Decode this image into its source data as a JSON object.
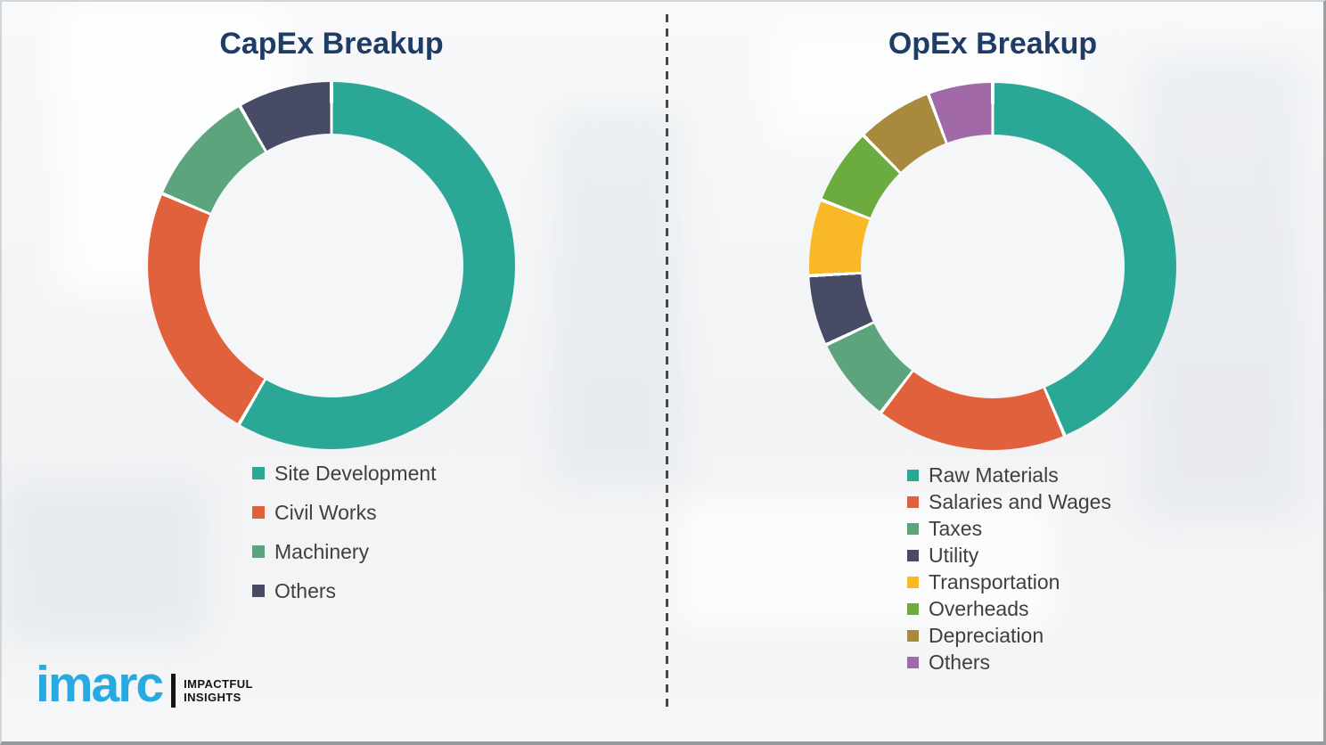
{
  "page": {
    "background_color": "#f4f5f6",
    "border_color": "#9b9fa2",
    "divider_style": "vertical dashed line separating the two charts"
  },
  "chart_data": [
    {
      "id": "capex",
      "type": "pie",
      "subtype": "donut",
      "title": "CapEx Breakup",
      "title_color": "#1f3c67",
      "legend_position": "below-chart-left",
      "data_labels_shown": false,
      "values_note": "percent shares estimated from arc angles; no numeric labels shown in image",
      "categories": [
        "Site Development",
        "Civil Works",
        "Machinery",
        "Others"
      ],
      "values": [
        58.4,
        23.0,
        10.3,
        8.3
      ],
      "colors": [
        "#2aa795",
        "#e2613d",
        "#5ba47c",
        "#474b66"
      ],
      "start_angle_deg": 0,
      "direction": "clockwise",
      "segment_gap_color": "#ffffff"
    },
    {
      "id": "opex",
      "type": "pie",
      "subtype": "donut",
      "title": "OpEx Breakup",
      "title_color": "#1f3c67",
      "legend_position": "below-chart-left",
      "data_labels_shown": false,
      "values_note": "percent shares estimated from arc angles; no numeric labels shown in image",
      "categories": [
        "Raw Materials",
        "Salaries and Wages",
        "Taxes",
        "Utility",
        "Transportation",
        "Overheads",
        "Depreciation",
        "Others"
      ],
      "values": [
        43.6,
        16.8,
        7.6,
        6.2,
        6.7,
        6.7,
        6.7,
        5.7
      ],
      "colors": [
        "#2aa795",
        "#e2613d",
        "#5ba47c",
        "#474b66",
        "#f9b826",
        "#6bab40",
        "#a8893d",
        "#a169a7"
      ],
      "start_angle_deg": 0,
      "direction": "clockwise",
      "segment_gap_color": "#ffffff"
    }
  ],
  "legend_text_color": "#3f3f3f",
  "logo": {
    "brand": "imarc",
    "brand_color": "#29a9e1",
    "tagline_line1": "IMPACTFUL",
    "tagline_line2": "INSIGHTS"
  }
}
